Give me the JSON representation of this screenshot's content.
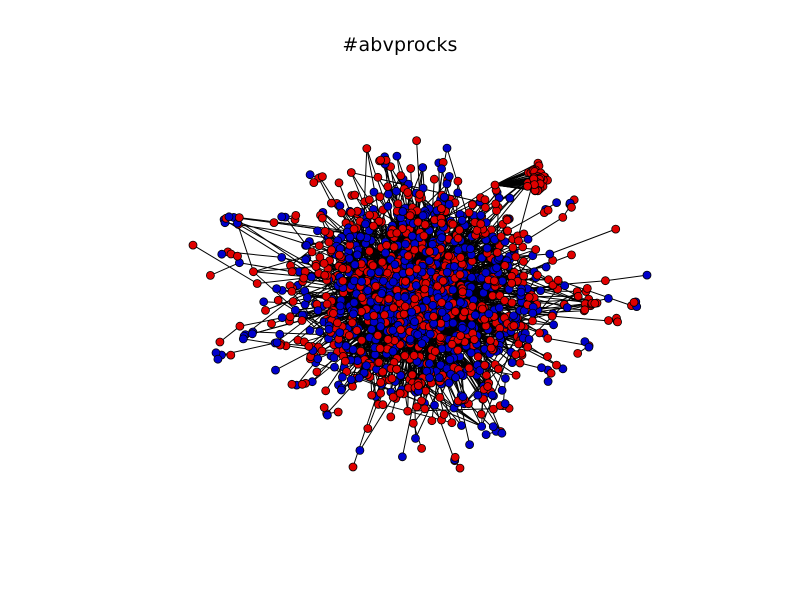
{
  "title": "#abvprocks",
  "colors": {
    "background": "#ffffff",
    "edge": "#000000",
    "node_outline": "#000000",
    "node_red": "#e00000",
    "node_blue": "#0000cc"
  },
  "network": {
    "node_color_groups": [
      "red",
      "blue"
    ]
  }
}
